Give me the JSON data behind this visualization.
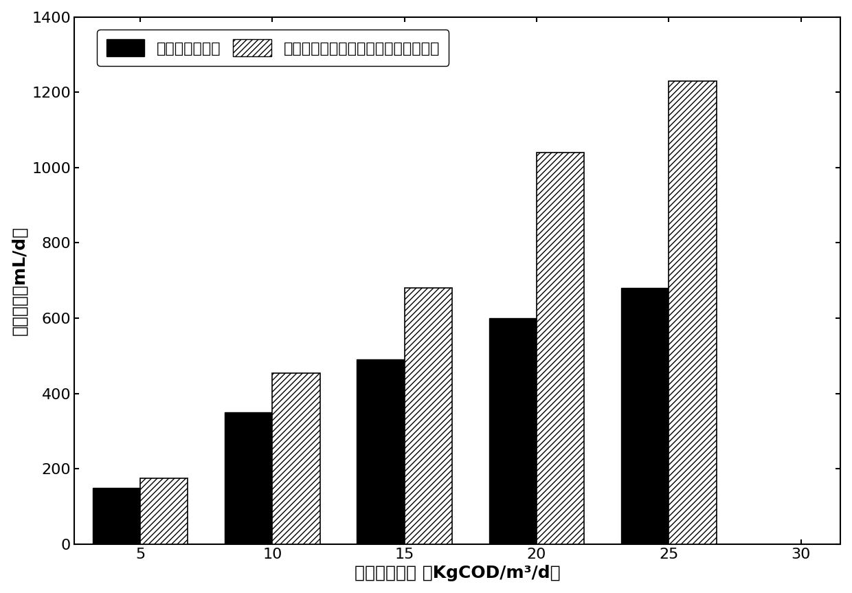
{
  "x_positions": [
    5,
    10,
    15,
    20,
    25
  ],
  "black_values": [
    150,
    350,
    490,
    600,
    680
  ],
  "hatch_values": [
    175,
    455,
    680,
    1040,
    1230
  ],
  "bar_width": 1.8,
  "black_color": "#000000",
  "hatch_color": "#ffffff",
  "hatch_pattern": "////",
  "hatch_edgecolor": "#000000",
  "xlabel": "进水有机负荷 （KgCOD/m³/d）",
  "ylabel": "甲烷产率（mL/d）",
  "xlim": [
    2.5,
    31.5
  ],
  "ylim": [
    0,
    1400
  ],
  "xticks": [
    5,
    10,
    15,
    20,
    25,
    30
  ],
  "yticks": [
    0,
    200,
    400,
    600,
    800,
    1000,
    1200,
    1400
  ],
  "legend_label1": "不投加任何材料",
  "legend_label2": "酸化相投加磁铁矿，甲烷相投加活性炭",
  "label_fontsize": 18,
  "tick_fontsize": 16,
  "legend_fontsize": 16,
  "background_color": "#ffffff"
}
